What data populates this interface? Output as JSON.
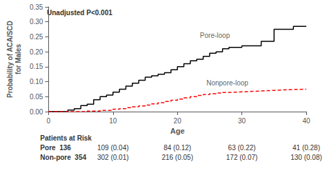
{
  "chart_data": {
    "type": "step",
    "x_label": "Age",
    "y_label": "Probability of ACA/SCD\nfor Males",
    "xlim": [
      0,
      40
    ],
    "ylim": [
      0,
      0.35
    ],
    "xticks": [
      0,
      10,
      20,
      30,
      40
    ],
    "yticks": [
      {
        "value": 0.0,
        "label": "0.00"
      },
      0.05,
      {
        "value": 0.1,
        "label": "0.10"
      },
      0.15,
      {
        "value": 0.2,
        "label": "0.20"
      },
      0.25,
      {
        "value": 0.3,
        "label": "0.30"
      },
      0.35
    ],
    "grid": false,
    "series": [
      {
        "name": "Pore-loop",
        "color": "black",
        "line_style": "solid",
        "x": [
          0,
          3,
          4,
          5,
          6,
          7,
          8,
          9,
          10,
          11,
          12,
          13,
          14,
          15,
          16,
          17,
          18,
          19,
          20,
          21,
          22,
          23,
          24,
          25,
          26,
          27,
          28,
          30,
          33,
          35,
          38,
          40
        ],
        "values": [
          0,
          0.005,
          0.01,
          0.02,
          0.025,
          0.04,
          0.05,
          0.055,
          0.065,
          0.075,
          0.085,
          0.095,
          0.105,
          0.115,
          0.12,
          0.125,
          0.13,
          0.14,
          0.15,
          0.16,
          0.17,
          0.175,
          0.185,
          0.195,
          0.2,
          0.21,
          0.215,
          0.22,
          0.235,
          0.275,
          0.285,
          0.285
        ]
      },
      {
        "name": "Nonpore-loop",
        "color": "red",
        "line_style": "dashed",
        "x": [
          0,
          6,
          8,
          10,
          11,
          12,
          13,
          14,
          15,
          16,
          17,
          18,
          19,
          20,
          21,
          22,
          23,
          24,
          25,
          26,
          27,
          28,
          29,
          30,
          31,
          32,
          33,
          34,
          35,
          36,
          37,
          38,
          40
        ],
        "values": [
          0,
          0.002,
          0.004,
          0.008,
          0.01,
          0.013,
          0.016,
          0.019,
          0.022,
          0.026,
          0.03,
          0.034,
          0.038,
          0.042,
          0.046,
          0.05,
          0.054,
          0.057,
          0.06,
          0.062,
          0.064,
          0.065,
          0.066,
          0.067,
          0.068,
          0.069,
          0.07,
          0.071,
          0.072,
          0.073,
          0.074,
          0.075,
          0.075
        ]
      }
    ],
    "annotations": [
      {
        "text": "Unadjusted P<0.001"
      },
      {
        "text": "Pore-loop",
        "x": 23.5,
        "y": 0.242
      },
      {
        "text": "Nonpore-loop",
        "x": 24.5,
        "y": 0.085
      }
    ],
    "table": {
      "header": "Patients at Risk",
      "rows": [
        {
          "label": "Pore  136",
          "values": [
            "109 (0.04)",
            "84 (0.12)",
            "63 (0.22)",
            "41 (0.28)"
          ]
        },
        {
          "label": "Non-pore  354",
          "values": [
            "302 (0.01)",
            "216 (0.05)",
            "172 (0.07)",
            "130 (0.08)"
          ]
        }
      ]
    }
  }
}
